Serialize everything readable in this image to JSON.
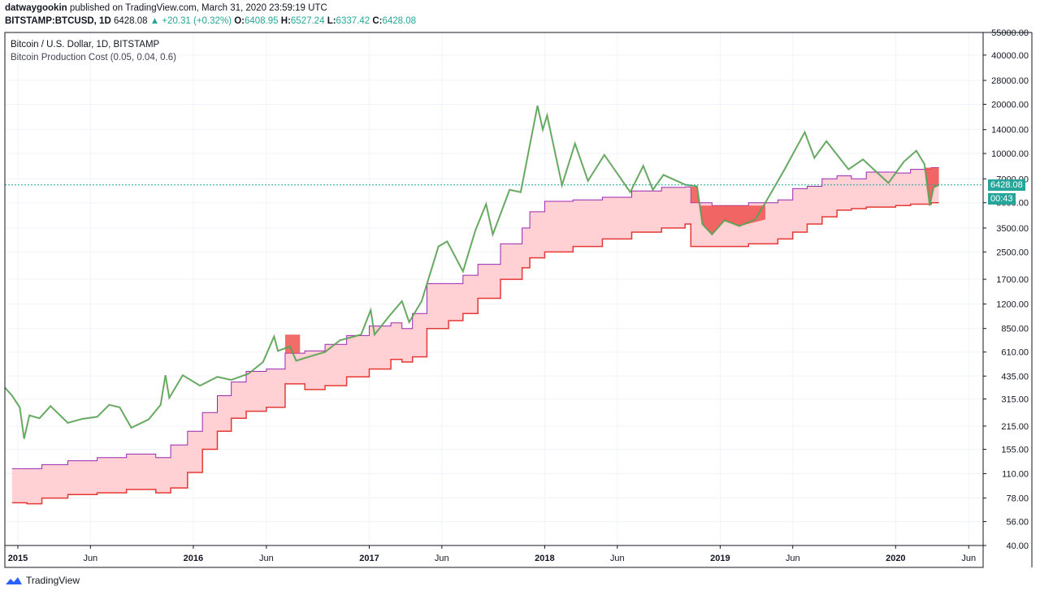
{
  "header": {
    "author": "datwaygookin",
    "published": "published on TradingView.com, March 31, 2020 23:59:19 UTC"
  },
  "ohlc": {
    "symbol": "BITSTAMP:BTCUSD, 1D",
    "last": "6428.08",
    "change": "▲ +20.31 (+0.32%)",
    "o_label": "O:",
    "o": "6408.95",
    "h_label": "H:",
    "h": "6527.24",
    "l_label": "L:",
    "l": "6337.42",
    "c_label": "C:",
    "c": "6428.08"
  },
  "legend": {
    "main": "Bitcoin / U.S. Dollar, 1D, BITSTAMP",
    "indicator": "Bitcoin Production Cost (0.05, 0.04, 0.6)"
  },
  "price_tag": {
    "price": "6428.08",
    "countdown": "00:43"
  },
  "footer": {
    "brand": "TradingView"
  },
  "colors": {
    "price_up": "#26a69a",
    "price_line": "#4caf50",
    "band_fill": "#ffcdd2",
    "band_upper": "#9c27b0",
    "band_lower": "#e53935",
    "below_cost": "#ef5350",
    "price_marker": "#26a69a"
  },
  "chart_data": {
    "type": "line",
    "title": "Bitcoin / U.S. Dollar, 1D, BITSTAMP",
    "scale": "log",
    "ylim": [
      40,
      55000
    ],
    "xlim": [
      "2014-12-05",
      "2020-07-01"
    ],
    "y_ticks": [
      "55000.00",
      "40000.00",
      "28000.00",
      "20000.00",
      "14000.00",
      "10000.00",
      "7000.00",
      "5000.00",
      "3500.00",
      "2500.00",
      "1700.00",
      "1200.00",
      "850.00",
      "610.00",
      "435.00",
      "315.00",
      "215.00",
      "155.00",
      "110.00",
      "78.00",
      "56.00",
      "40.00"
    ],
    "x_ticks": [
      {
        "label": "2015",
        "date": "2015-01-01"
      },
      {
        "label": "Jun",
        "date": "2015-06-01"
      },
      {
        "label": "2016",
        "date": "2016-01-01"
      },
      {
        "label": "Jun",
        "date": "2016-06-01"
      },
      {
        "label": "2017",
        "date": "2017-01-01"
      },
      {
        "label": "Jun",
        "date": "2017-06-01"
      },
      {
        "label": "2018",
        "date": "2018-01-01"
      },
      {
        "label": "Jun",
        "date": "2018-06-01"
      },
      {
        "label": "2019",
        "date": "2019-01-01"
      },
      {
        "label": "Jun",
        "date": "2019-06-01"
      },
      {
        "label": "2020",
        "date": "2020-01-01"
      },
      {
        "label": "Jun",
        "date": "2020-06-01"
      }
    ],
    "current_price": 6428.08,
    "series": [
      {
        "name": "BTCUSD",
        "points": [
          [
            "2014-12-05",
            370
          ],
          [
            "2014-12-20",
            330
          ],
          [
            "2015-01-05",
            280
          ],
          [
            "2015-01-14",
            180
          ],
          [
            "2015-01-25",
            250
          ],
          [
            "2015-02-15",
            240
          ],
          [
            "2015-03-10",
            285
          ],
          [
            "2015-04-15",
            225
          ],
          [
            "2015-05-15",
            238
          ],
          [
            "2015-06-15",
            245
          ],
          [
            "2015-07-10",
            290
          ],
          [
            "2015-08-01",
            280
          ],
          [
            "2015-08-25",
            210
          ],
          [
            "2015-09-30",
            236
          ],
          [
            "2015-10-25",
            290
          ],
          [
            "2015-11-04",
            440
          ],
          [
            "2015-11-12",
            320
          ],
          [
            "2015-12-10",
            440
          ],
          [
            "2016-01-15",
            380
          ],
          [
            "2016-02-20",
            430
          ],
          [
            "2016-03-20",
            412
          ],
          [
            "2016-04-25",
            450
          ],
          [
            "2016-05-25",
            530
          ],
          [
            "2016-06-17",
            760
          ],
          [
            "2016-06-25",
            620
          ],
          [
            "2016-07-20",
            660
          ],
          [
            "2016-08-02",
            540
          ],
          [
            "2016-09-01",
            575
          ],
          [
            "2016-10-01",
            610
          ],
          [
            "2016-11-01",
            720
          ],
          [
            "2016-12-15",
            780
          ],
          [
            "2017-01-04",
            1100
          ],
          [
            "2017-01-12",
            780
          ],
          [
            "2017-02-10",
            1000
          ],
          [
            "2017-03-10",
            1250
          ],
          [
            "2017-03-25",
            930
          ],
          [
            "2017-04-20",
            1250
          ],
          [
            "2017-05-25",
            2700
          ],
          [
            "2017-06-12",
            2900
          ],
          [
            "2017-07-15",
            1900
          ],
          [
            "2017-08-10",
            3400
          ],
          [
            "2017-09-01",
            4900
          ],
          [
            "2017-09-15",
            3200
          ],
          [
            "2017-10-20",
            6000
          ],
          [
            "2017-11-12",
            5800
          ],
          [
            "2017-12-17",
            19600
          ],
          [
            "2017-12-28",
            14000
          ],
          [
            "2018-01-06",
            17100
          ],
          [
            "2018-02-06",
            6400
          ],
          [
            "2018-03-05",
            11500
          ],
          [
            "2018-04-01",
            6800
          ],
          [
            "2018-05-05",
            9800
          ],
          [
            "2018-06-28",
            5800
          ],
          [
            "2018-07-25",
            8400
          ],
          [
            "2018-08-14",
            6000
          ],
          [
            "2018-09-05",
            7400
          ],
          [
            "2018-10-20",
            6450
          ],
          [
            "2018-11-14",
            6300
          ],
          [
            "2018-11-25",
            3700
          ],
          [
            "2018-12-15",
            3200
          ],
          [
            "2019-01-10",
            3900
          ],
          [
            "2019-02-10",
            3600
          ],
          [
            "2019-03-15",
            3950
          ],
          [
            "2019-04-05",
            5000
          ],
          [
            "2019-05-15",
            8000
          ],
          [
            "2019-06-26",
            13500
          ],
          [
            "2019-07-16",
            9400
          ],
          [
            "2019-08-10",
            11900
          ],
          [
            "2019-09-25",
            8000
          ],
          [
            "2019-10-25",
            9200
          ],
          [
            "2019-12-17",
            6600
          ],
          [
            "2020-01-18",
            8900
          ],
          [
            "2020-02-13",
            10400
          ],
          [
            "2020-03-01",
            8600
          ],
          [
            "2020-03-12",
            4800
          ],
          [
            "2020-03-20",
            6200
          ],
          [
            "2020-03-31",
            6428.08
          ]
        ]
      },
      {
        "name": "Production cost upper",
        "points": [
          [
            "2014-12-20",
            118
          ],
          [
            "2015-01-20",
            118
          ],
          [
            "2015-02-20",
            125
          ],
          [
            "2015-04-15",
            132
          ],
          [
            "2015-06-15",
            138
          ],
          [
            "2015-08-15",
            145
          ],
          [
            "2015-10-15",
            138
          ],
          [
            "2015-11-15",
            165
          ],
          [
            "2015-12-20",
            200
          ],
          [
            "2016-01-20",
            260
          ],
          [
            "2016-02-20",
            330
          ],
          [
            "2016-03-20",
            400
          ],
          [
            "2016-04-20",
            465
          ],
          [
            "2016-06-01",
            480
          ],
          [
            "2016-07-10",
            600
          ],
          [
            "2016-08-20",
            620
          ],
          [
            "2016-10-01",
            680
          ],
          [
            "2016-11-15",
            770
          ],
          [
            "2017-01-01",
            880
          ],
          [
            "2017-02-15",
            920
          ],
          [
            "2017-03-10",
            850
          ],
          [
            "2017-04-01",
            1050
          ],
          [
            "2017-05-01",
            1600
          ],
          [
            "2017-06-15",
            1600
          ],
          [
            "2017-07-15",
            1800
          ],
          [
            "2017-08-15",
            2100
          ],
          [
            "2017-10-01",
            2800
          ],
          [
            "2017-11-15",
            3500
          ],
          [
            "2017-12-01",
            4400
          ],
          [
            "2018-01-01",
            5100
          ],
          [
            "2018-03-01",
            5200
          ],
          [
            "2018-05-01",
            5400
          ],
          [
            "2018-07-01",
            5900
          ],
          [
            "2018-09-01",
            6200
          ],
          [
            "2018-10-20",
            6250
          ],
          [
            "2018-11-01",
            5000
          ],
          [
            "2018-12-15",
            4800
          ],
          [
            "2019-03-01",
            5000
          ],
          [
            "2019-05-01",
            5200
          ],
          [
            "2019-06-01",
            6100
          ],
          [
            "2019-07-01",
            6300
          ],
          [
            "2019-08-01",
            7000
          ],
          [
            "2019-09-01",
            7300
          ],
          [
            "2019-10-01",
            7000
          ],
          [
            "2019-11-01",
            7700
          ],
          [
            "2020-01-01",
            7600
          ],
          [
            "2020-02-01",
            8000
          ],
          [
            "2020-03-15",
            8200
          ],
          [
            "2020-03-31",
            8200
          ]
        ]
      },
      {
        "name": "Production cost lower",
        "points": [
          [
            "2014-12-20",
            73
          ],
          [
            "2015-01-20",
            72
          ],
          [
            "2015-02-20",
            78
          ],
          [
            "2015-04-15",
            82
          ],
          [
            "2015-06-15",
            84
          ],
          [
            "2015-08-15",
            88
          ],
          [
            "2015-10-15",
            84
          ],
          [
            "2015-11-15",
            90
          ],
          [
            "2015-12-20",
            112
          ],
          [
            "2016-01-20",
            155
          ],
          [
            "2016-02-20",
            200
          ],
          [
            "2016-03-20",
            240
          ],
          [
            "2016-04-20",
            265
          ],
          [
            "2016-06-01",
            280
          ],
          [
            "2016-07-10",
            390
          ],
          [
            "2016-08-20",
            360
          ],
          [
            "2016-10-01",
            380
          ],
          [
            "2016-11-15",
            430
          ],
          [
            "2017-01-01",
            480
          ],
          [
            "2017-02-15",
            550
          ],
          [
            "2017-03-10",
            530
          ],
          [
            "2017-04-01",
            570
          ],
          [
            "2017-05-01",
            850
          ],
          [
            "2017-06-15",
            950
          ],
          [
            "2017-07-15",
            1050
          ],
          [
            "2017-08-15",
            1300
          ],
          [
            "2017-10-01",
            1700
          ],
          [
            "2017-11-15",
            2000
          ],
          [
            "2017-12-01",
            2300
          ],
          [
            "2018-01-01",
            2500
          ],
          [
            "2018-03-01",
            2700
          ],
          [
            "2018-05-01",
            3000
          ],
          [
            "2018-07-01",
            3300
          ],
          [
            "2018-09-01",
            3500
          ],
          [
            "2018-10-20",
            3700
          ],
          [
            "2018-11-01",
            2700
          ],
          [
            "2018-12-15",
            2700
          ],
          [
            "2019-03-01",
            2800
          ],
          [
            "2019-05-01",
            3000
          ],
          [
            "2019-06-01",
            3300
          ],
          [
            "2019-07-01",
            3700
          ],
          [
            "2019-08-01",
            4100
          ],
          [
            "2019-09-01",
            4500
          ],
          [
            "2019-10-01",
            4600
          ],
          [
            "2019-11-01",
            4700
          ],
          [
            "2020-01-01",
            4800
          ],
          [
            "2020-02-01",
            4900
          ],
          [
            "2020-03-15",
            5000
          ],
          [
            "2020-03-31",
            5000
          ]
        ]
      }
    ]
  }
}
